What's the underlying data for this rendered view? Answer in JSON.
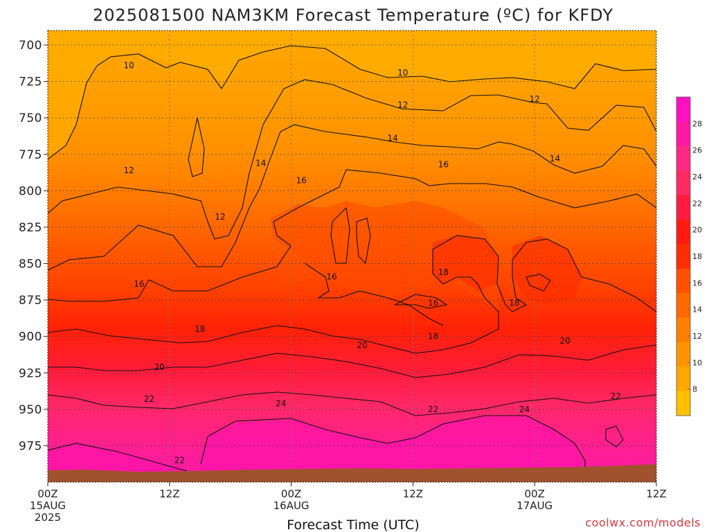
{
  "chart_data": {
    "type": "heatmap",
    "title": "2025081500 NAM3KM Forecast Temperature (ºC) for KFDY",
    "xlabel": "Forecast Time (UTC)",
    "ylabel": "",
    "credit": "coolwx.com/models",
    "x_ticks": [
      {
        "hour": 0,
        "lines": [
          "00Z",
          "15AUG",
          "2025"
        ]
      },
      {
        "hour": 12,
        "lines": [
          "12Z"
        ]
      },
      {
        "hour": 24,
        "lines": [
          "00Z",
          "16AUG"
        ]
      },
      {
        "hour": 36,
        "lines": [
          "12Z"
        ]
      },
      {
        "hour": 48,
        "lines": [
          "00Z",
          "17AUG"
        ]
      },
      {
        "hour": 60,
        "lines": [
          "12Z"
        ]
      }
    ],
    "xlim": [
      0,
      60
    ],
    "y_ticks": [
      700,
      725,
      750,
      775,
      800,
      825,
      850,
      875,
      900,
      925,
      950,
      975
    ],
    "ylim": [
      1000,
      690
    ],
    "y_axis_reversed": true,
    "units": "ºC",
    "colorbar": {
      "ticks": [
        8,
        10,
        12,
        14,
        16,
        18,
        20,
        22,
        24,
        26,
        28
      ],
      "colors": [
        "#ffc000",
        "#ffa800",
        "#ff9400",
        "#ff8000",
        "#ff6a00",
        "#ff5000",
        "#ff2e00",
        "#ff1a10",
        "#ff1c40",
        "#ff2a62",
        "#ff2882",
        "#ff18a6",
        "#ff10c0"
      ]
    },
    "contour_levels": [
      10,
      12,
      14,
      16,
      18,
      20,
      22,
      24
    ],
    "contour_labels": [
      {
        "text": "10",
        "hour": 8.0,
        "pressure": 714
      },
      {
        "text": "10",
        "hour": 35.0,
        "pressure": 719
      },
      {
        "text": "12",
        "hour": 35.0,
        "pressure": 741
      },
      {
        "text": "12",
        "hour": 48.0,
        "pressure": 737
      },
      {
        "text": "12",
        "hour": 8.0,
        "pressure": 786
      },
      {
        "text": "14",
        "hour": 34.0,
        "pressure": 764
      },
      {
        "text": "14",
        "hour": 50.0,
        "pressure": 778
      },
      {
        "text": "14",
        "hour": 21.0,
        "pressure": 781
      },
      {
        "text": "16",
        "hour": 39.0,
        "pressure": 782
      },
      {
        "text": "16",
        "hour": 25.0,
        "pressure": 793
      },
      {
        "text": "12",
        "hour": 17.0,
        "pressure": 818
      },
      {
        "text": "16",
        "hour": 9.0,
        "pressure": 864
      },
      {
        "text": "16",
        "hour": 28.0,
        "pressure": 859
      },
      {
        "text": "18",
        "hour": 39.0,
        "pressure": 856
      },
      {
        "text": "16",
        "hour": 38.0,
        "pressure": 877
      },
      {
        "text": "18",
        "hour": 46.0,
        "pressure": 877
      },
      {
        "text": "18",
        "hour": 15.0,
        "pressure": 895
      },
      {
        "text": "18",
        "hour": 38.0,
        "pressure": 900
      },
      {
        "text": "20",
        "hour": 11.0,
        "pressure": 921
      },
      {
        "text": "20",
        "hour": 31.0,
        "pressure": 906
      },
      {
        "text": "20",
        "hour": 51.0,
        "pressure": 903
      },
      {
        "text": "22",
        "hour": 10.0,
        "pressure": 943
      },
      {
        "text": "22",
        "hour": 38.0,
        "pressure": 950
      },
      {
        "text": "22",
        "hour": 56.0,
        "pressure": 941
      },
      {
        "text": "24",
        "hour": 23.0,
        "pressure": 946
      },
      {
        "text": "24",
        "hour": 47.0,
        "pressure": 950
      },
      {
        "text": "22",
        "hour": 13.0,
        "pressure": 985
      }
    ],
    "grid": true,
    "colors": {
      "terrain": "#a0522d",
      "contour_line": "#111111"
    }
  }
}
